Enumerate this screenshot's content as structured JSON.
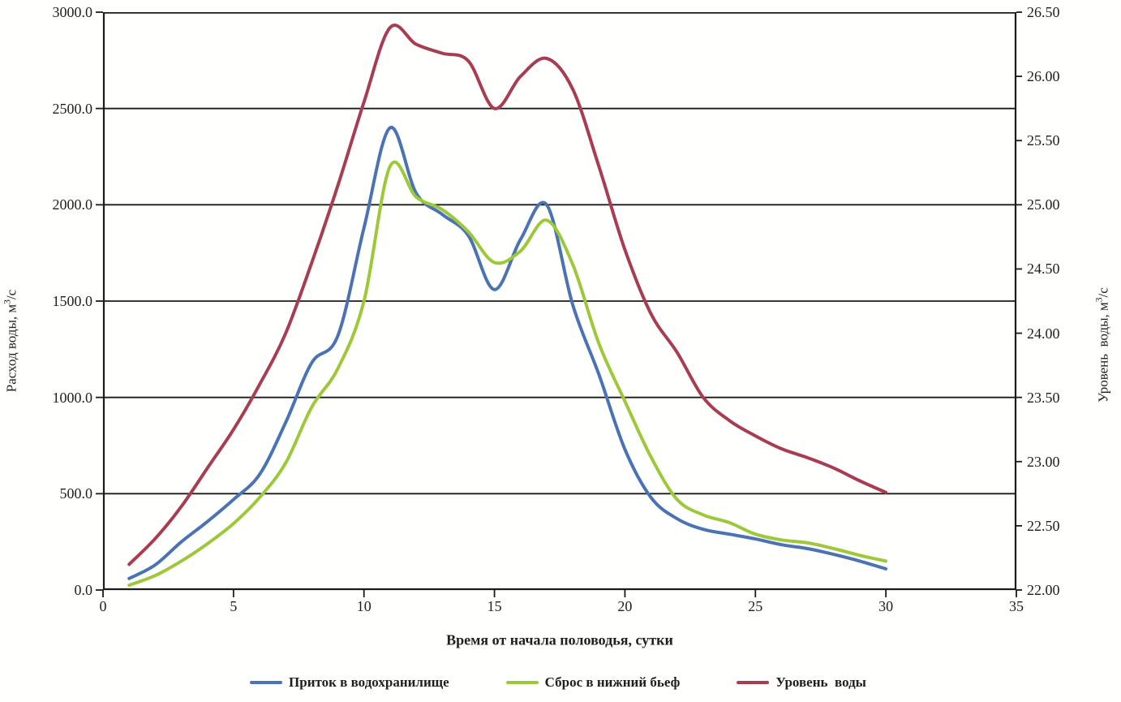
{
  "chart_data": {
    "type": "line",
    "title": "",
    "grid": "horizontal",
    "legend_position": "bottom",
    "x": [
      1,
      2,
      3,
      4,
      5,
      6,
      7,
      8,
      9,
      10,
      11,
      12,
      13,
      14,
      15,
      16,
      17,
      18,
      19,
      20,
      21,
      22,
      23,
      24,
      25,
      26,
      27,
      28,
      29,
      30
    ],
    "x_axis": {
      "label": "Время от начала половодья, сутки",
      "ticks": [
        "0",
        "5",
        "10",
        "15",
        "20",
        "25",
        "30",
        "35"
      ],
      "range": [
        0,
        35
      ]
    },
    "y_left": {
      "label_prefix": "Расход воды, м",
      "label_sup": "3",
      "label_suffix": "/с",
      "ticks": [
        "3000.0",
        "2500.0",
        "2000.0",
        "1500.0",
        "1000.0",
        "500.0",
        "0.0"
      ],
      "range": [
        0,
        3000
      ]
    },
    "y_right": {
      "label_prefix": "Уровень  воды, м",
      "label_sup": "3",
      "label_suffix": "/с",
      "ticks": [
        "26.50",
        "26.00",
        "25.50",
        "25.00",
        "24.50",
        "24.00",
        "23.50",
        "23.00",
        "22.50",
        "22.00"
      ],
      "range": [
        22.0,
        26.5
      ]
    },
    "series": [
      {
        "name": "Приток в водохранилище",
        "slug": "inflow",
        "color": "#4a73b4",
        "axis": "left",
        "values": [
          60,
          130,
          250,
          355,
          470,
          600,
          870,
          1180,
          1320,
          1880,
          2400,
          2060,
          1950,
          1840,
          1560,
          1820,
          2000,
          1480,
          1120,
          730,
          480,
          370,
          315,
          290,
          265,
          235,
          215,
          185,
          150,
          110
        ]
      },
      {
        "name": "Сброс в нижний бьеф",
        "slug": "release",
        "color": "#9cc83a",
        "axis": "left",
        "values": [
          25,
          75,
          150,
          240,
          345,
          480,
          660,
          950,
          1150,
          1500,
          2200,
          2040,
          1975,
          1860,
          1700,
          1760,
          1920,
          1690,
          1280,
          980,
          690,
          470,
          390,
          350,
          290,
          260,
          245,
          215,
          180,
          150
        ]
      },
      {
        "name": "Уровень  воды",
        "slug": "water-level",
        "color": "#a83d52",
        "axis": "right",
        "values": [
          22.2,
          22.4,
          22.65,
          22.95,
          23.25,
          23.6,
          24.0,
          24.55,
          25.15,
          25.8,
          26.38,
          26.25,
          26.18,
          26.12,
          25.75,
          26.0,
          26.14,
          25.9,
          25.3,
          24.65,
          24.15,
          23.85,
          23.5,
          23.32,
          23.2,
          23.1,
          23.03,
          22.95,
          22.85,
          22.76
        ]
      }
    ],
    "axis_color": "#1b1b1b",
    "text_color": "#1f1f1f"
  }
}
